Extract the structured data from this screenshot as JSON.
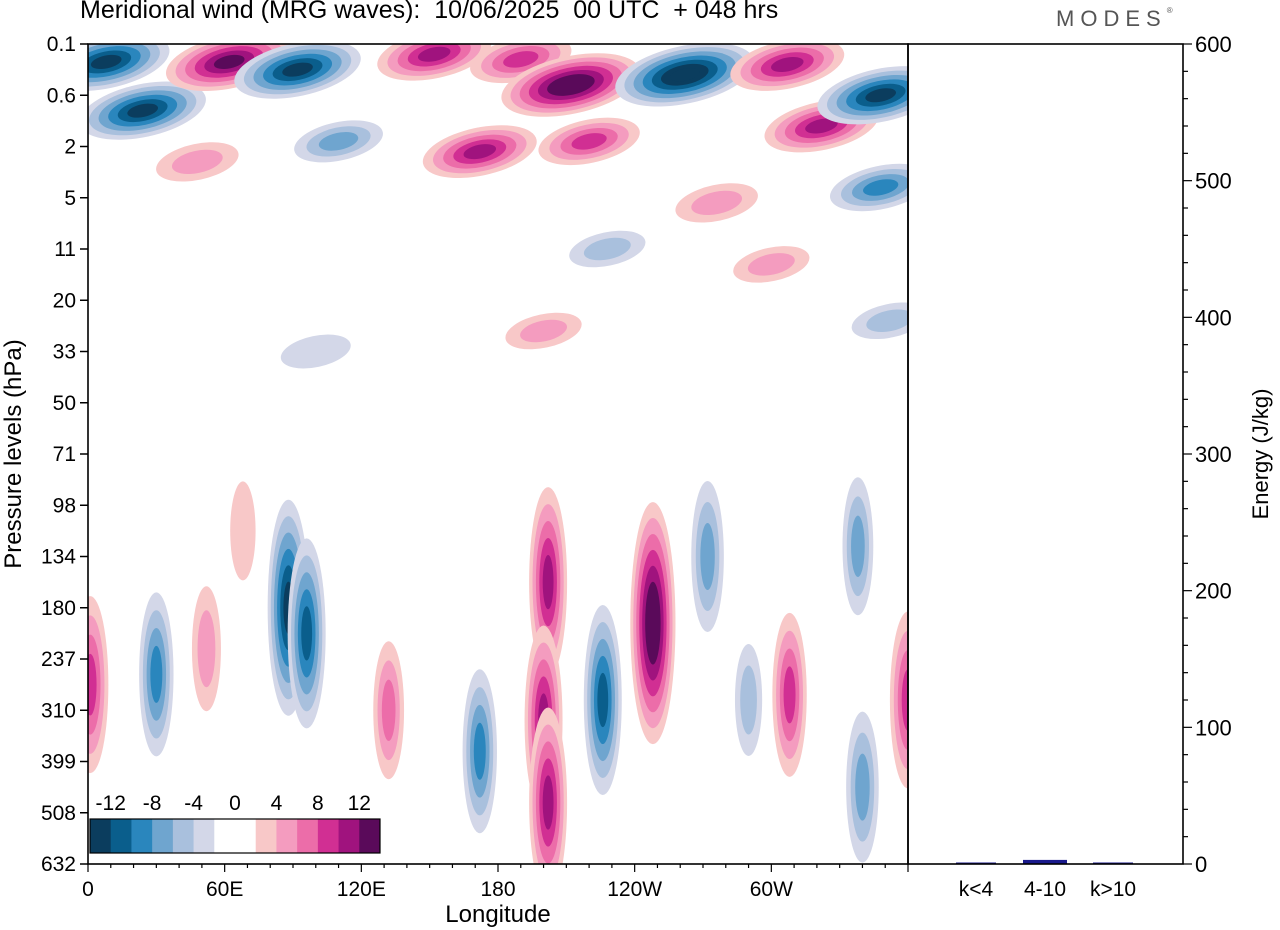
{
  "title": "Meridional wind (MRG waves):  10/06/2025  00 UTC  + 048 hrs",
  "logo": "MODES",
  "logo_mark": "®",
  "chart_data": [
    {
      "type": "heatmap",
      "xlabel": "Longitude",
      "ylabel": "Pressure levels (hPa)",
      "x_ticks": [
        "0",
        "60E",
        "120E",
        "180",
        "120W",
        "60W"
      ],
      "x_tick_values": [
        0,
        60,
        120,
        180,
        240,
        300
      ],
      "xlim": [
        0,
        360
      ],
      "y_ticks": [
        "0.1",
        "0.6",
        "2",
        "5",
        "11",
        "20",
        "33",
        "50",
        "71",
        "98",
        "134",
        "180",
        "237",
        "310",
        "399",
        "508",
        "632"
      ],
      "y_axis": "pressure levels, equally spaced, top to bottom",
      "colorbar": {
        "labels": [
          "-12",
          "-8",
          "-4",
          "0",
          "4",
          "8",
          "12"
        ],
        "colors": [
          "#0b3d5e",
          "#0a5e8c",
          "#2a86bd",
          "#6fa5cf",
          "#a9c0dd",
          "#d3d7e8",
          "#ffffff",
          "#ffffff",
          "#f8c8c8",
          "#f49cbf",
          "#ec6da9",
          "#d12f93",
          "#a0137e",
          "#5a0a5a"
        ]
      },
      "features": [
        {
          "lon": 8,
          "level": 0.35,
          "value": -12
        },
        {
          "lon": 24,
          "level": 1.3,
          "value": -12
        },
        {
          "lon": 62,
          "level": 0.35,
          "value": 12
        },
        {
          "lon": 92,
          "level": 0.5,
          "value": -12
        },
        {
          "lon": 152,
          "level": 0.2,
          "value": 10
        },
        {
          "lon": 190,
          "level": 0.3,
          "value": 8
        },
        {
          "lon": 212,
          "level": 0.8,
          "value": 14
        },
        {
          "lon": 262,
          "level": 0.6,
          "value": -14
        },
        {
          "lon": 307,
          "level": 0.4,
          "value": 10
        },
        {
          "lon": 322,
          "level": 1.6,
          "value": 10
        },
        {
          "lon": 348,
          "level": 1.0,
          "value": -12
        },
        {
          "lon": 348,
          "level": 2.8,
          "value": -8
        },
        {
          "lon": 172,
          "level": 2.1,
          "value": 10
        },
        {
          "lon": 220,
          "level": 1.9,
          "value": 8
        },
        {
          "lon": 110,
          "level": 1.9,
          "value": -6
        },
        {
          "lon": 48,
          "level": 2.3,
          "value": 5
        },
        {
          "lon": 200,
          "level": 5.6,
          "value": 4
        },
        {
          "lon": 228,
          "level": 4.0,
          "value": -4
        },
        {
          "lon": 276,
          "level": 3.1,
          "value": 5
        },
        {
          "lon": 300,
          "level": 4.3,
          "value": 4
        },
        {
          "lon": 100,
          "level": 6.0,
          "value": -3
        },
        {
          "lon": 352,
          "level": 5.4,
          "value": -4
        },
        {
          "lon": 88,
          "level": 11.0,
          "value": -12
        },
        {
          "lon": 96,
          "level": 11.5,
          "value": -10
        },
        {
          "lon": 30,
          "level": 12.3,
          "value": -8
        },
        {
          "lon": 52,
          "level": 11.8,
          "value": 5
        },
        {
          "lon": 68,
          "level": 9.5,
          "value": 3
        },
        {
          "lon": 1,
          "level": 12.5,
          "value": 9
        },
        {
          "lon": 132,
          "level": 13.0,
          "value": 6
        },
        {
          "lon": 172,
          "level": 13.8,
          "value": -8
        },
        {
          "lon": 202,
          "level": 10.5,
          "value": 10
        },
        {
          "lon": 200,
          "level": 13.2,
          "value": 10
        },
        {
          "lon": 202,
          "level": 14.8,
          "value": 10
        },
        {
          "lon": 226,
          "level": 12.8,
          "value": -10
        },
        {
          "lon": 248,
          "level": 11.3,
          "value": 14
        },
        {
          "lon": 272,
          "level": 10.0,
          "value": -7
        },
        {
          "lon": 290,
          "level": 12.8,
          "value": -4
        },
        {
          "lon": 308,
          "level": 12.7,
          "value": 8
        },
        {
          "lon": 338,
          "level": 9.8,
          "value": -6
        },
        {
          "lon": 340,
          "level": 14.5,
          "value": -7
        },
        {
          "lon": 360,
          "level": 12.8,
          "value": 9
        }
      ]
    },
    {
      "type": "bar",
      "ylabel": "Energy (J/kg)",
      "categories": [
        "k<4",
        "4-10",
        "k>10"
      ],
      "values": [
        1,
        3,
        0.5
      ],
      "ylim": [
        0,
        600
      ],
      "y_ticks": [
        "0",
        "100",
        "200",
        "300",
        "400",
        "500",
        "600"
      ],
      "color": "#1a1a8c"
    }
  ]
}
